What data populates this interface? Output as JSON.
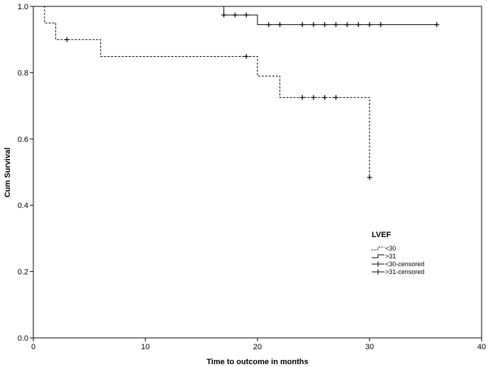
{
  "chart_data": {
    "type": "line",
    "subtype": "kaplan-meier step",
    "title": "",
    "xlabel": "Time to outcome in months",
    "ylabel": "Cum Survival",
    "xlim": [
      0,
      40
    ],
    "ylim": [
      0.0,
      1.0
    ],
    "x_ticks": [
      0,
      10,
      20,
      30,
      40
    ],
    "x_tick_labels": [
      "0",
      "10",
      "20",
      "30",
      "40"
    ],
    "y_ticks": [
      0.0,
      0.2,
      0.4,
      0.6,
      0.8,
      1.0
    ],
    "y_tick_labels": [
      "0.0",
      "0.2",
      "0.4",
      "0.6",
      "0.8",
      "1.0"
    ],
    "grid": false,
    "legend": {
      "title": "LVEF",
      "placement": "lower-right",
      "entries": [
        "<30",
        ">31",
        "<30-censored",
        ">31-censored"
      ]
    },
    "series": [
      {
        "name": "<30",
        "style": "dashed",
        "steps": [
          [
            0,
            1.0
          ],
          [
            1,
            0.95
          ],
          [
            2,
            0.9
          ],
          [
            6,
            0.849
          ],
          [
            20,
            0.79
          ],
          [
            22,
            0.725
          ],
          [
            30,
            0.484
          ]
        ],
        "end_x": 30,
        "censored": [
          [
            3,
            0.9
          ],
          [
            19,
            0.849
          ],
          [
            24,
            0.725
          ],
          [
            25,
            0.725
          ],
          [
            26,
            0.725
          ],
          [
            27,
            0.725
          ],
          [
            30,
            0.484
          ]
        ]
      },
      {
        "name": ">31",
        "style": "solid",
        "steps": [
          [
            0,
            1.0
          ],
          [
            17,
            0.974
          ],
          [
            20,
            0.945
          ]
        ],
        "end_x": 36,
        "censored": [
          [
            17,
            0.974
          ],
          [
            18,
            0.974
          ],
          [
            19,
            0.974
          ],
          [
            21,
            0.945
          ],
          [
            22,
            0.945
          ],
          [
            24,
            0.945
          ],
          [
            25,
            0.945
          ],
          [
            26,
            0.945
          ],
          [
            27,
            0.945
          ],
          [
            28,
            0.945
          ],
          [
            29,
            0.945
          ],
          [
            30,
            0.945
          ],
          [
            31,
            0.945
          ],
          [
            36,
            0.945
          ]
        ]
      }
    ]
  }
}
